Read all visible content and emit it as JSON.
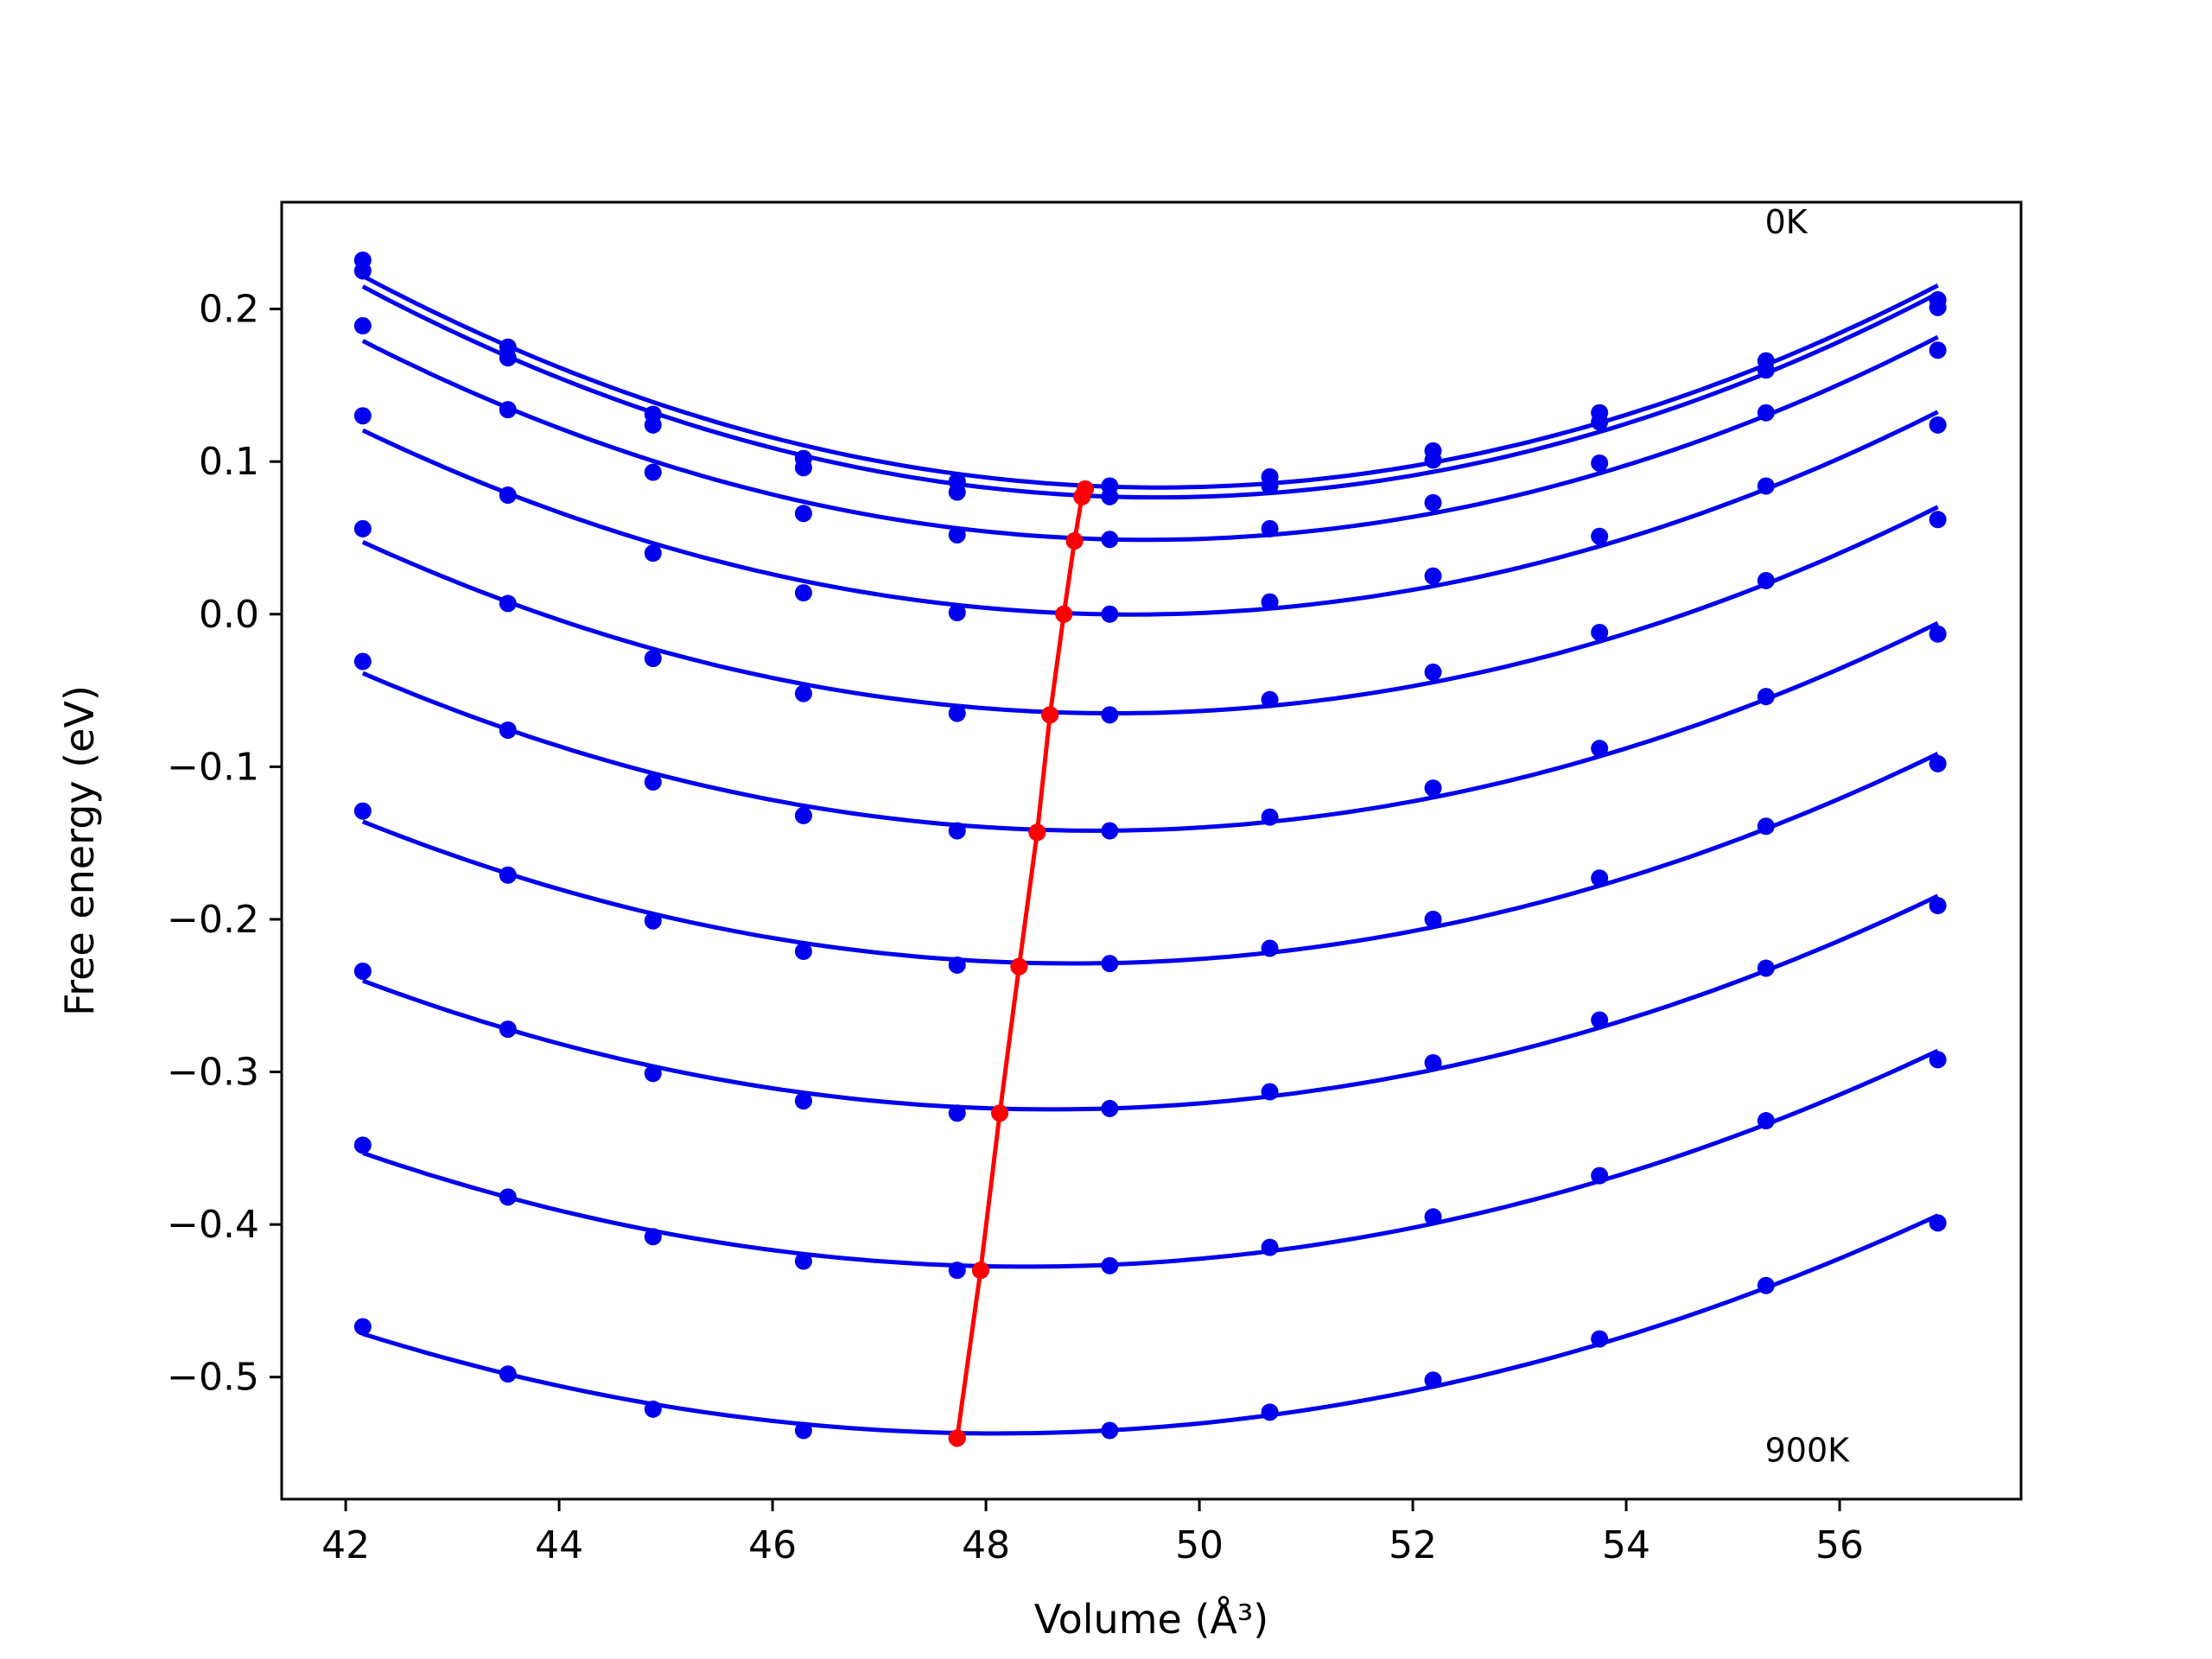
{
  "chart_data": {
    "type": "line",
    "title": "",
    "xlabel": "Volume (Å³)",
    "ylabel": "Free energy (eV)",
    "xlim": [
      41.4,
      57.7
    ],
    "ylim": [
      -0.58,
      0.27
    ],
    "xticks": [
      42,
      44,
      46,
      48,
      50,
      52,
      54,
      56
    ],
    "yticks": [
      -0.5,
      -0.4,
      -0.3,
      -0.2,
      -0.1,
      0.0,
      0.1,
      0.2
    ],
    "xtick_labels": [
      "42",
      "44",
      "46",
      "48",
      "50",
      "52",
      "54",
      "56"
    ],
    "ytick_labels": [
      "−0.5",
      "−0.4",
      "−0.3",
      "−0.2",
      "−0.1",
      "0.0",
      "0.1",
      "0.2"
    ],
    "grid": false,
    "x": [
      42.16,
      43.52,
      44.88,
      46.29,
      47.73,
      49.16,
      50.66,
      52.19,
      53.75,
      55.31,
      56.92
    ],
    "curve_color": "#0000ee",
    "minimum_color": "#ff0000",
    "series": [
      {
        "values": [
          0.232,
          0.175,
          0.131,
          0.102,
          0.087,
          0.084,
          0.09,
          0.107,
          0.132,
          0.166,
          0.206
        ],
        "min": [
          48.93,
          0.082
        ]
      },
      {
        "values": [
          0.225,
          0.168,
          0.124,
          0.096,
          0.08,
          0.077,
          0.084,
          0.101,
          0.126,
          0.16,
          0.201
        ],
        "min": [
          48.9,
          0.077
        ]
      },
      {
        "values": [
          0.189,
          0.134,
          0.093,
          0.066,
          0.052,
          0.049,
          0.056,
          0.073,
          0.099,
          0.132,
          0.173
        ],
        "min": [
          48.83,
          0.048
        ]
      },
      {
        "values": [
          0.13,
          0.078,
          0.04,
          0.014,
          0.001,
          0.0,
          0.008,
          0.025,
          0.051,
          0.084,
          0.124
        ],
        "min": [
          48.73,
          0.0
        ]
      },
      {
        "values": [
          0.056,
          0.007,
          -0.029,
          -0.052,
          -0.065,
          -0.066,
          -0.056,
          -0.038,
          -0.012,
          0.022,
          0.062
        ],
        "min": [
          48.6,
          -0.066
        ]
      },
      {
        "values": [
          -0.031,
          -0.076,
          -0.11,
          -0.132,
          -0.142,
          -0.142,
          -0.133,
          -0.114,
          -0.088,
          -0.054,
          -0.013
        ],
        "min": [
          48.48,
          -0.143
        ]
      },
      {
        "values": [
          -0.129,
          -0.171,
          -0.201,
          -0.221,
          -0.23,
          -0.229,
          -0.219,
          -0.2,
          -0.173,
          -0.139,
          -0.098
        ],
        "min": [
          48.31,
          -0.231
        ]
      },
      {
        "values": [
          -0.234,
          -0.272,
          -0.301,
          -0.319,
          -0.327,
          -0.324,
          -0.313,
          -0.294,
          -0.266,
          -0.232,
          -0.191
        ],
        "min": [
          48.13,
          -0.327
        ]
      },
      {
        "values": [
          -0.348,
          -0.382,
          -0.408,
          -0.424,
          -0.43,
          -0.427,
          -0.415,
          -0.395,
          -0.368,
          -0.332,
          -0.292
        ],
        "min": [
          47.95,
          -0.43
        ]
      },
      {
        "values": [
          -0.467,
          -0.498,
          -0.521,
          -0.535,
          -0.54,
          -0.535,
          -0.523,
          -0.502,
          -0.475,
          -0.44,
          -0.399
        ],
        "min": [
          47.73,
          -0.54
        ]
      }
    ],
    "minimum_series": {
      "x": [
        48.93,
        48.9,
        48.83,
        48.73,
        48.6,
        48.48,
        48.31,
        48.13,
        47.95,
        47.73
      ],
      "values": [
        0.082,
        0.077,
        0.048,
        0.0,
        -0.066,
        -0.143,
        -0.231,
        -0.327,
        -0.43,
        -0.54
      ]
    },
    "annotations": [
      {
        "text": "0K",
        "x": 55.3,
        "y": 0.257
      },
      {
        "text": "900K",
        "x": 55.3,
        "y": -0.548
      }
    ]
  }
}
